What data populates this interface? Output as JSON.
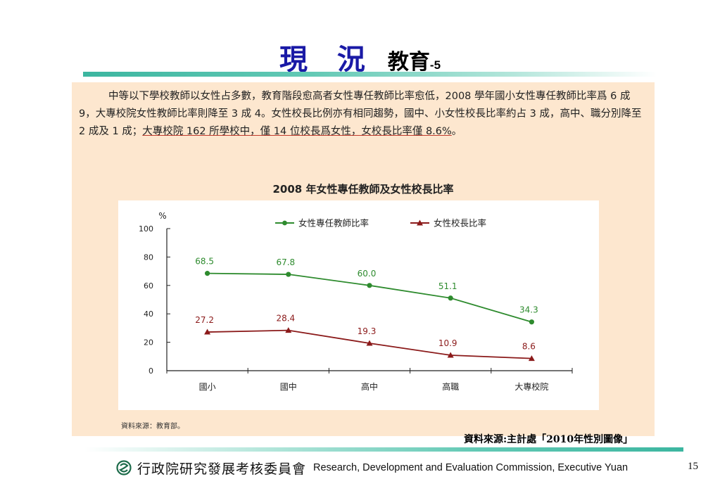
{
  "header": {
    "title": "現 況",
    "subtitle": "教育",
    "suffix": "-5"
  },
  "paragraph": {
    "text_plain": "中等以下學校教師以女性占多數，教育階段愈高者女性專任教師比率愈低，2008 學年國小女性專任教師比率爲 6 成 9，大專校院女性教師比率則降至 3 成 4。女性校長比例亦有相同趨勢，國中、小女性校長比率約占 3 成，高中、職分別降至 2 成及 1 成；",
    "text_underlined": "大專校院 162 所學校中，僅 14 位校長爲女性，女校長比率僅 8.6%",
    "text_end": "。"
  },
  "inner_source": "資料來源：教育部。",
  "outer_source": "資料來源:主計處「2010年性別圖像」",
  "footer": {
    "org_cn": "行政院研究發展考核委員會",
    "org_en": "Research, Development and Evaluation Commission, Executive Yuan",
    "page_number": "15"
  },
  "colors": {
    "series1": "#2e8b2e",
    "series2": "#8b1a1a",
    "title_blue": "#1a1aa6",
    "panel": "#fde7cf",
    "accent": "#3cb6a0"
  },
  "chart_data": {
    "type": "line",
    "title": "2008 年女性專任教師及女性校長比率",
    "ylabel": "%",
    "categories": [
      "國小",
      "國中",
      "高中",
      "高職",
      "大專校院"
    ],
    "ylim": [
      0,
      100
    ],
    "yticks": [
      0,
      20,
      40,
      60,
      80,
      100
    ],
    "grid": false,
    "legend_position": "top",
    "series": [
      {
        "name": "女性專任教師比率",
        "values": [
          68.5,
          67.8,
          60.0,
          51.1,
          34.3
        ],
        "labels": [
          "68.5",
          "67.8",
          "60.0",
          "51.1",
          "34.3"
        ],
        "marker": "circle"
      },
      {
        "name": "女性校長比率",
        "values": [
          27.2,
          28.4,
          19.3,
          10.9,
          8.6
        ],
        "labels": [
          "27.2",
          "28.4",
          "19.3",
          "10.9",
          "8.6"
        ],
        "marker": "triangle"
      }
    ]
  }
}
